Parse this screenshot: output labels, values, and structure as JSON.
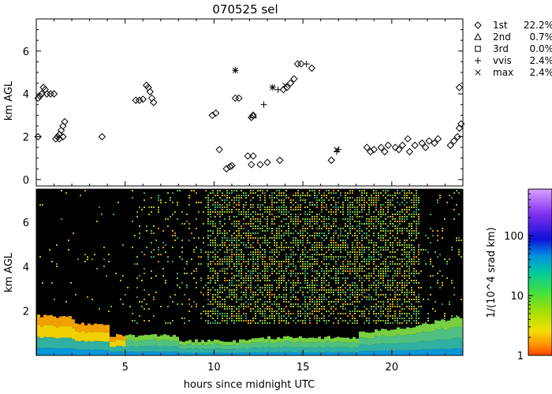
{
  "chart_data": [
    {
      "type": "scatter",
      "title": "070525 sel",
      "ylabel": "km AGL",
      "xlim": [
        0,
        24
      ],
      "ylim": [
        -0.3,
        7.5
      ],
      "y_ticks": [
        0,
        2,
        4,
        6
      ],
      "legend_position": "right",
      "legend": [
        {
          "marker": "diamond",
          "label": "1st",
          "value": "22.2%"
        },
        {
          "marker": "triangle",
          "label": "2nd",
          "value": "0.7%"
        },
        {
          "marker": "square",
          "label": "3rd",
          "value": "0.0%"
        },
        {
          "marker": "plus",
          "label": "vvis",
          "value": "2.4%"
        },
        {
          "marker": "cross",
          "label": "max",
          "value": "2.4%"
        }
      ],
      "series": [
        {
          "marker": "diamond",
          "points": [
            [
              0.1,
              3.8
            ],
            [
              0.2,
              3.9
            ],
            [
              0.3,
              4.0
            ],
            [
              0.4,
              4.3
            ],
            [
              0.5,
              4.2
            ],
            [
              0.6,
              4.0
            ],
            [
              0.8,
              4.0
            ],
            [
              1.0,
              4.0
            ],
            [
              0.1,
              2.0
            ],
            [
              1.1,
              1.9
            ],
            [
              1.2,
              2.0
            ],
            [
              1.3,
              2.1
            ],
            [
              1.4,
              2.3
            ],
            [
              1.5,
              2.5
            ],
            [
              1.6,
              2.7
            ],
            [
              1.3,
              1.9
            ],
            [
              1.5,
              2.0
            ],
            [
              3.7,
              2.0
            ],
            [
              5.6,
              3.7
            ],
            [
              5.8,
              3.7
            ],
            [
              6.0,
              3.75
            ],
            [
              6.2,
              4.4
            ],
            [
              6.3,
              4.3
            ],
            [
              6.4,
              4.1
            ],
            [
              6.5,
              3.8
            ],
            [
              6.6,
              3.6
            ],
            [
              9.9,
              3.0
            ],
            [
              10.1,
              3.1
            ],
            [
              10.3,
              1.4
            ],
            [
              10.7,
              0.5
            ],
            [
              10.9,
              0.6
            ],
            [
              11.0,
              0.65
            ],
            [
              11.2,
              3.8
            ],
            [
              11.4,
              3.8
            ],
            [
              11.9,
              1.1
            ],
            [
              12.1,
              0.7
            ],
            [
              12.2,
              1.1
            ],
            [
              12.1,
              2.9
            ],
            [
              12.2,
              3.0
            ],
            [
              12.6,
              0.7
            ],
            [
              13.0,
              0.8
            ],
            [
              13.7,
              0.9
            ],
            [
              13.9,
              4.2
            ],
            [
              14.1,
              4.3
            ],
            [
              14.3,
              4.5
            ],
            [
              14.5,
              4.7
            ],
            [
              14.7,
              5.4
            ],
            [
              14.9,
              5.4
            ],
            [
              15.5,
              5.2
            ],
            [
              16.6,
              0.9
            ],
            [
              18.6,
              1.5
            ],
            [
              19.0,
              1.4
            ],
            [
              19.4,
              1.5
            ],
            [
              19.8,
              1.6
            ],
            [
              20.2,
              1.5
            ],
            [
              20.6,
              1.6
            ],
            [
              20.9,
              1.9
            ],
            [
              21.3,
              1.6
            ],
            [
              21.7,
              1.7
            ],
            [
              22.1,
              1.8
            ],
            [
              22.4,
              1.7
            ],
            [
              23.3,
              1.6
            ],
            [
              23.5,
              1.8
            ],
            [
              23.7,
              2.0
            ],
            [
              23.8,
              2.4
            ],
            [
              23.9,
              2.6
            ],
            [
              23.8,
              4.3
            ],
            [
              18.8,
              1.3
            ],
            [
              19.6,
              1.3
            ],
            [
              20.4,
              1.4
            ],
            [
              21.0,
              1.3
            ],
            [
              21.9,
              1.5
            ],
            [
              22.6,
              1.9
            ]
          ]
        },
        {
          "marker": "triangle",
          "points": [
            [
              12.2,
              3.0
            ]
          ]
        },
        {
          "marker": "square",
          "points": []
        },
        {
          "marker": "plus",
          "points": [
            [
              11.2,
              5.1
            ],
            [
              12.8,
              3.5
            ],
            [
              13.3,
              4.3
            ],
            [
              13.6,
              4.2
            ],
            [
              15.2,
              5.4
            ],
            [
              16.9,
              1.3
            ],
            [
              17.0,
              1.4
            ]
          ]
        },
        {
          "marker": "cross",
          "points": [
            [
              11.2,
              5.1
            ],
            [
              13.3,
              4.3
            ],
            [
              14.0,
              4.4
            ],
            [
              16.9,
              1.4
            ]
          ]
        }
      ]
    },
    {
      "type": "heatmap",
      "xlabel": "hours since midnight UTC",
      "ylabel": "km AGL",
      "xlim": [
        0,
        24
      ],
      "ylim": [
        0,
        7.5
      ],
      "x_ticks": [
        5,
        10,
        15,
        20
      ],
      "y_ticks": [
        2,
        4,
        6
      ],
      "colorbar": {
        "label": "1/(10^4 srad km)",
        "scale": "log",
        "range": [
          1,
          600
        ],
        "ticks": [
          {
            "value": 1,
            "label": "1"
          },
          {
            "value": 10,
            "label": "10"
          },
          {
            "value": 100,
            "label": "100"
          }
        ]
      }
    }
  ]
}
